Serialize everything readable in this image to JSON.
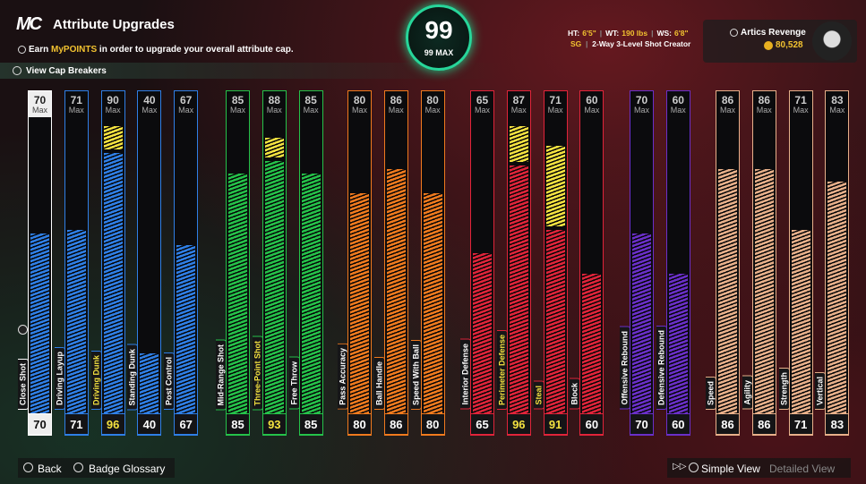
{
  "header": {
    "logo": "MC",
    "title": "Attribute Upgrades",
    "subtitle_prefix": "Earn",
    "subtitle_highlight": "MyPOINTS",
    "subtitle_suffix": "in order to upgrade your overall attribute cap.",
    "cap_breakers": "View Cap Breakers"
  },
  "overall": {
    "value": "99",
    "max_label": "99 MAX"
  },
  "player": {
    "stats": [
      {
        "label": "HT:",
        "value": "6'5\""
      },
      {
        "label": "WT:",
        "value": "190 lbs"
      },
      {
        "label": "WS:",
        "value": "6'8\""
      }
    ],
    "position": "SG",
    "archetype": "2-Way 3-Level Shot Creator",
    "name": "Artics Revenge",
    "vc": "80,528"
  },
  "max_word": "Max",
  "groups": [
    {
      "color": "#2f7fe6",
      "attributes": [
        {
          "name": "Close Shot",
          "max": 70,
          "value": 70,
          "selected": true
        },
        {
          "name": "Driving Layup",
          "max": 71,
          "value": 71
        },
        {
          "name": "Driving Dunk",
          "max": 90,
          "value": 96
        },
        {
          "name": "Standing Dunk",
          "max": 40,
          "value": 40
        },
        {
          "name": "Post Control",
          "max": 67,
          "value": 67
        }
      ]
    },
    {
      "color": "#25c24a",
      "attributes": [
        {
          "name": "Mid-Range Shot",
          "max": 85,
          "value": 85
        },
        {
          "name": "Three-Point Shot",
          "max": 88,
          "value": 93
        },
        {
          "name": "Free Throw",
          "max": 85,
          "value": 85
        }
      ]
    },
    {
      "color": "#f07a1e",
      "attributes": [
        {
          "name": "Pass Accuracy",
          "max": 80,
          "value": 80
        },
        {
          "name": "Ball Handle",
          "max": 86,
          "value": 86
        },
        {
          "name": "Speed With Ball",
          "max": 80,
          "value": 80
        }
      ]
    },
    {
      "color": "#e0243a",
      "attributes": [
        {
          "name": "Interior Defense",
          "max": 65,
          "value": 65
        },
        {
          "name": "Perimeter Defense",
          "max": 87,
          "value": 96
        },
        {
          "name": "Steal",
          "max": 71,
          "value": 91
        },
        {
          "name": "Block",
          "max": 60,
          "value": 60
        }
      ]
    },
    {
      "color": "#6a2fc9",
      "attributes": [
        {
          "name": "Offensive Rebound",
          "max": 70,
          "value": 70
        },
        {
          "name": "Defensive Rebound",
          "max": 60,
          "value": 60
        }
      ]
    },
    {
      "color": "#e8b08a",
      "attributes": [
        {
          "name": "Speed",
          "max": 86,
          "value": 86
        },
        {
          "name": "Agility",
          "max": 86,
          "value": 86
        },
        {
          "name": "Strength",
          "max": 71,
          "value": 71
        },
        {
          "name": "Vertical",
          "max": 83,
          "value": 83
        }
      ]
    }
  ],
  "footer": {
    "back": "Back",
    "glossary": "Badge Glossary",
    "simple_view": "Simple View",
    "detailed_view": "Detailed View"
  }
}
